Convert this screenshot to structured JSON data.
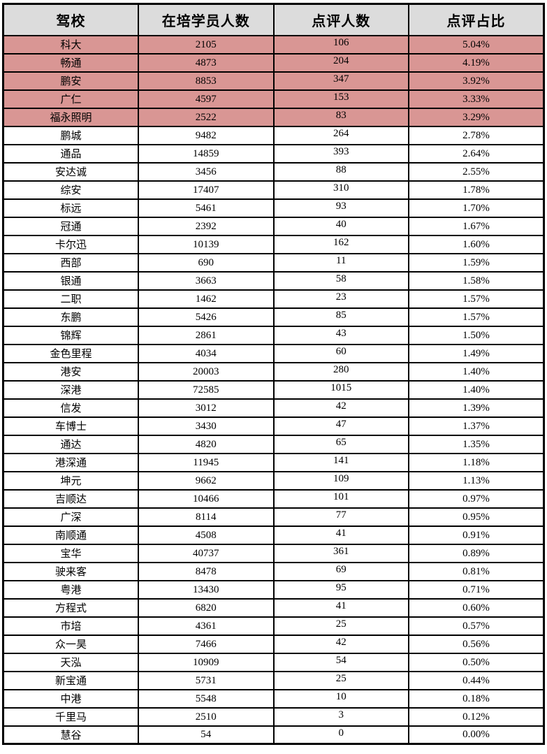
{
  "chart_data": {
    "type": "table",
    "columns": [
      "驾校",
      "在培学员人数",
      "点评人数",
      "点评占比"
    ],
    "rows": [
      [
        "科大",
        "2105",
        "106",
        "5.04%"
      ],
      [
        "畅通",
        "4873",
        "204",
        "4.19%"
      ],
      [
        "鹏安",
        "8853",
        "347",
        "3.92%"
      ],
      [
        "广仁",
        "4597",
        "153",
        "3.33%"
      ],
      [
        "福永照明",
        "2522",
        "83",
        "3.29%"
      ],
      [
        "鹏城",
        "9482",
        "264",
        "2.78%"
      ],
      [
        "通品",
        "14859",
        "393",
        "2.64%"
      ],
      [
        "安达诚",
        "3456",
        "88",
        "2.55%"
      ],
      [
        "综安",
        "17407",
        "310",
        "1.78%"
      ],
      [
        "标远",
        "5461",
        "93",
        "1.70%"
      ],
      [
        "冠通",
        "2392",
        "40",
        "1.67%"
      ],
      [
        "卡尔迅",
        "10139",
        "162",
        "1.60%"
      ],
      [
        "西部",
        "690",
        "11",
        "1.59%"
      ],
      [
        "银通",
        "3663",
        "58",
        "1.58%"
      ],
      [
        "二职",
        "1462",
        "23",
        "1.57%"
      ],
      [
        "东鹏",
        "5426",
        "85",
        "1.57%"
      ],
      [
        "锦辉",
        "2861",
        "43",
        "1.50%"
      ],
      [
        "金色里程",
        "4034",
        "60",
        "1.49%"
      ],
      [
        "港安",
        "20003",
        "280",
        "1.40%"
      ],
      [
        "深港",
        "72585",
        "1015",
        "1.40%"
      ],
      [
        "信发",
        "3012",
        "42",
        "1.39%"
      ],
      [
        "车博士",
        "3430",
        "47",
        "1.37%"
      ],
      [
        "通达",
        "4820",
        "65",
        "1.35%"
      ],
      [
        "港深通",
        "11945",
        "141",
        "1.18%"
      ],
      [
        "坤元",
        "9662",
        "109",
        "1.13%"
      ],
      [
        "吉顺达",
        "10466",
        "101",
        "0.97%"
      ],
      [
        "广深",
        "8114",
        "77",
        "0.95%"
      ],
      [
        "南顺通",
        "4508",
        "41",
        "0.91%"
      ],
      [
        "宝华",
        "40737",
        "361",
        "0.89%"
      ],
      [
        "驶来客",
        "8478",
        "69",
        "0.81%"
      ],
      [
        "粤港",
        "13430",
        "95",
        "0.71%"
      ],
      [
        "方程式",
        "6820",
        "41",
        "0.60%"
      ],
      [
        "市培",
        "4361",
        "25",
        "0.57%"
      ],
      [
        "众一昊",
        "7466",
        "42",
        "0.56%"
      ],
      [
        "天泓",
        "10909",
        "54",
        "0.50%"
      ],
      [
        "新宝通",
        "5731",
        "25",
        "0.44%"
      ],
      [
        "中港",
        "5548",
        "10",
        "0.18%"
      ],
      [
        "千里马",
        "2510",
        "3",
        "0.12%"
      ],
      [
        "慧谷",
        "54",
        "0",
        "0.00%"
      ]
    ],
    "highlighted_row_count": 5,
    "highlight_color": "#d99694",
    "header_bg_color": "#dcdcdc",
    "layout_hints": {
      "grid": true,
      "border_color": "#000000"
    }
  }
}
